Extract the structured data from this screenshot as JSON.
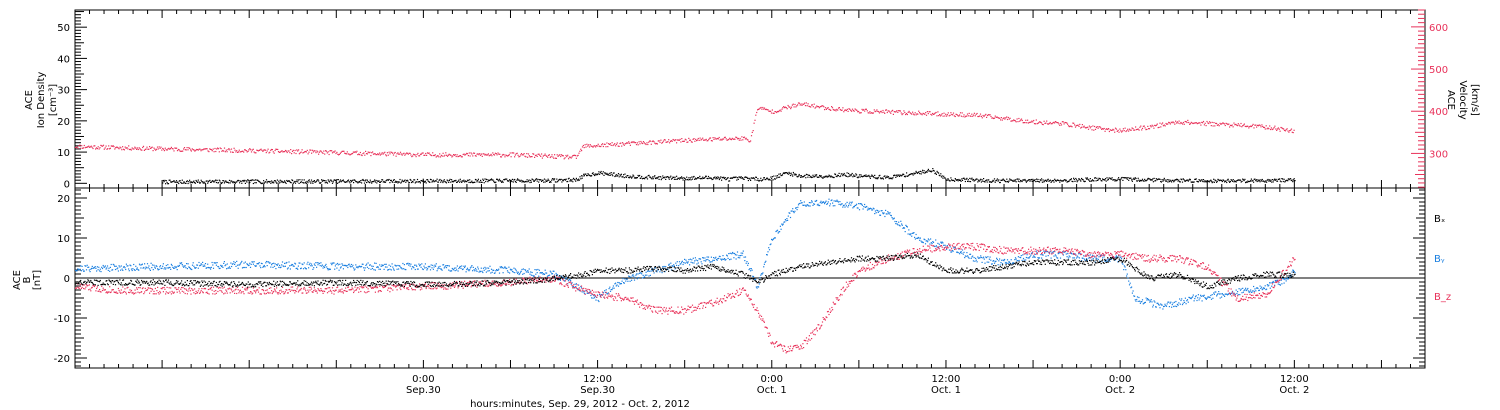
{
  "chart_data": [
    {
      "type": "scatter",
      "panel": "top",
      "ylabel_left": [
        "ACE",
        "Ion Density",
        "[cm⁻³]"
      ],
      "ylabel_right": [
        "ACE",
        "Velocity",
        "[km/s]"
      ],
      "ylim_left": [
        -1.5,
        55.5
      ],
      "ylim_right": [
        218,
        640
      ],
      "yticks_left": [
        0,
        10,
        20,
        30,
        40,
        50
      ],
      "yticks_right": [
        300,
        400,
        500,
        600
      ],
      "colors": {
        "density": "#000000",
        "velocity": "#e8325a",
        "right_axis": "#e8325a"
      },
      "series": [
        {
          "name": "Ion Density",
          "axis": "left",
          "color": "#000000",
          "x": [
            "2012-09-29 06:00",
            "2012-09-29 12:00",
            "2012-09-29 18:00",
            "2012-09-30 00:00",
            "2012-09-30 06:00",
            "2012-09-30 09:00",
            "2012-09-30 10:30",
            "2012-09-30 11:00",
            "2012-09-30 12:00",
            "2012-09-30 14:00",
            "2012-09-30 16:00",
            "2012-09-30 18:00",
            "2012-09-30 20:00",
            "2012-09-30 21:00",
            "2012-09-30 22:00",
            "2012-09-30 23:00",
            "2012-10-01 00:00",
            "2012-10-01 01:00",
            "2012-10-01 02:00",
            "2012-10-01 04:00",
            "2012-10-01 05:00",
            "2012-10-01 06:00",
            "2012-10-01 08:00",
            "2012-10-01 10:00",
            "2012-10-01 11:00",
            "2012-10-01 12:00",
            "2012-10-01 14:00",
            "2012-10-01 16:00",
            "2012-10-01 18:00",
            "2012-10-01 20:00",
            "2012-10-01 22:00",
            "2012-10-02 00:00",
            "2012-10-02 02:00",
            "2012-10-02 04:00",
            "2012-10-02 06:00",
            "2012-10-02 08:00",
            "2012-10-02 10:00",
            "2012-10-02 12:00"
          ],
          "values": [
            0.6,
            0.7,
            0.8,
            0.9,
            1.0,
            1.1,
            1.3,
            2.5,
            3.5,
            2.5,
            2.0,
            1.8,
            2.0,
            1.5,
            1.8,
            1.5,
            1.8,
            3.5,
            2.5,
            2.5,
            3.0,
            2.5,
            2.0,
            3.5,
            4.5,
            1.5,
            1.2,
            1.0,
            1.0,
            1.1,
            1.4,
            1.5,
            1.3,
            1.1,
            1.0,
            1.0,
            1.1,
            1.2
          ]
        },
        {
          "name": "Velocity",
          "axis": "right",
          "color": "#e8325a",
          "x": [
            "2012-09-29 00:00",
            "2012-09-29 06:00",
            "2012-09-29 12:00",
            "2012-09-29 18:00",
            "2012-09-30 00:00",
            "2012-09-30 06:00",
            "2012-09-30 10:30",
            "2012-09-30 11:00",
            "2012-09-30 12:00",
            "2012-09-30 15:00",
            "2012-09-30 18:00",
            "2012-09-30 20:00",
            "2012-09-30 22:00",
            "2012-09-30 22:30",
            "2012-09-30 23:00",
            "2012-10-01 00:00",
            "2012-10-01 01:00",
            "2012-10-01 02:00",
            "2012-10-01 04:00",
            "2012-10-01 06:00",
            "2012-10-01 09:00",
            "2012-10-01 12:00",
            "2012-10-01 14:00",
            "2012-10-01 16:00",
            "2012-10-01 18:00",
            "2012-10-01 20:00",
            "2012-10-01 22:00",
            "2012-10-02 00:00",
            "2012-10-02 02:00",
            "2012-10-02 04:00",
            "2012-10-02 06:00",
            "2012-10-02 08:00",
            "2012-10-02 10:00",
            "2012-10-02 12:00"
          ],
          "values": [
            318,
            312,
            308,
            303,
            298,
            298,
            292,
            318,
            320,
            326,
            332,
            335,
            337,
            332,
            410,
            400,
            410,
            418,
            408,
            402,
            398,
            394,
            392,
            384,
            376,
            372,
            362,
            355,
            364,
            376,
            372,
            368,
            364,
            354
          ]
        }
      ]
    },
    {
      "type": "scatter",
      "panel": "bottom",
      "ylabel_left": [
        "ACE",
        "B",
        "[nT]"
      ],
      "ylim": [
        -22.5,
        22.5
      ],
      "yticks": [
        -20,
        -10,
        0,
        10,
        20
      ],
      "zero_line": true,
      "legend": "right",
      "legend_labels": [
        "Bₓ",
        "Bᵧ",
        "B_z"
      ],
      "colors": {
        "Bx": "#000000",
        "By": "#1a7fe0",
        "Bz": "#e8325a"
      },
      "series": [
        {
          "name": "Bₓ",
          "color": "#000000",
          "x": [
            "2012-09-29 00:00",
            "2012-09-29 06:00",
            "2012-09-29 12:00",
            "2012-09-29 18:00",
            "2012-09-30 00:00",
            "2012-09-30 06:00",
            "2012-09-30 09:00",
            "2012-09-30 11:00",
            "2012-09-30 12:00",
            "2012-09-30 14:00",
            "2012-09-30 16:00",
            "2012-09-30 18:00",
            "2012-09-30 20:00",
            "2012-09-30 22:00",
            "2012-09-30 23:00",
            "2012-10-01 00:00",
            "2012-10-01 02:00",
            "2012-10-01 04:00",
            "2012-10-01 06:00",
            "2012-10-01 08:00",
            "2012-10-01 10:00",
            "2012-10-01 12:00",
            "2012-10-01 14:00",
            "2012-10-01 16:00",
            "2012-10-01 18:00",
            "2012-10-01 20:00",
            "2012-10-01 22:00",
            "2012-10-02 00:00",
            "2012-10-02 02:00",
            "2012-10-02 04:00",
            "2012-10-02 06:00",
            "2012-10-02 08:00",
            "2012-10-02 10:00",
            "2012-10-02 12:00"
          ],
          "values": [
            -1,
            -1,
            -1.5,
            -1,
            -1.5,
            -1,
            0,
            1,
            2,
            2,
            2.5,
            2,
            3,
            1,
            -1,
            1,
            3,
            4,
            5,
            5,
            6,
            2,
            2,
            3,
            4,
            4,
            4,
            5,
            0,
            1,
            -2,
            0,
            1,
            1
          ]
        },
        {
          "name": "Bᵧ",
          "color": "#1a7fe0",
          "x": [
            "2012-09-29 00:00",
            "2012-09-29 06:00",
            "2012-09-29 12:00",
            "2012-09-29 18:00",
            "2012-09-30 00:00",
            "2012-09-30 06:00",
            "2012-09-30 09:00",
            "2012-09-30 10:30",
            "2012-09-30 12:00",
            "2012-09-30 14:00",
            "2012-09-30 16:00",
            "2012-09-30 18:00",
            "2012-09-30 20:00",
            "2012-09-30 22:00",
            "2012-09-30 23:00",
            "2012-10-01 00:00",
            "2012-10-01 01:00",
            "2012-10-01 02:00",
            "2012-10-01 04:00",
            "2012-10-01 06:00",
            "2012-10-01 08:00",
            "2012-10-01 10:00",
            "2012-10-01 12:00",
            "2012-10-01 14:00",
            "2012-10-01 16:00",
            "2012-10-01 18:00",
            "2012-10-01 20:00",
            "2012-10-01 22:00",
            "2012-10-02 00:00",
            "2012-10-02 01:00",
            "2012-10-02 03:00",
            "2012-10-02 05:00",
            "2012-10-02 07:00",
            "2012-10-02 09:00",
            "2012-10-02 11:00",
            "2012-10-02 12:00"
          ],
          "values": [
            2.5,
            3,
            3.5,
            3,
            3,
            2,
            1,
            -2,
            -5,
            0,
            2,
            4,
            5,
            6,
            -2,
            10,
            15,
            19,
            19,
            18,
            16,
            10,
            8,
            5,
            4,
            6,
            6,
            5,
            5,
            -5,
            -7,
            -5,
            -4,
            -3,
            -1,
            2
          ]
        },
        {
          "name": "B_z",
          "color": "#e8325a",
          "x": [
            "2012-09-29 00:00",
            "2012-09-29 03:00",
            "2012-09-29 06:00",
            "2012-09-29 12:00",
            "2012-09-29 18:00",
            "2012-09-30 00:00",
            "2012-09-30 06:00",
            "2012-09-30 09:00",
            "2012-09-30 11:00",
            "2012-09-30 12:00",
            "2012-09-30 14:00",
            "2012-09-30 16:00",
            "2012-09-30 18:00",
            "2012-09-30 20:00",
            "2012-09-30 22:00",
            "2012-09-30 23:00",
            "2012-10-01 00:00",
            "2012-10-01 01:00",
            "2012-10-01 02:00",
            "2012-10-01 03:00",
            "2012-10-01 04:00",
            "2012-10-01 05:00",
            "2012-10-01 06:00",
            "2012-10-01 08:00",
            "2012-10-01 10:00",
            "2012-10-01 12:00",
            "2012-10-01 14:00",
            "2012-10-01 16:00",
            "2012-10-01 18:00",
            "2012-10-01 20:00",
            "2012-10-01 22:00",
            "2012-10-02 00:00",
            "2012-10-02 02:00",
            "2012-10-02 04:00",
            "2012-10-02 06:00",
            "2012-10-02 08:00",
            "2012-10-02 10:00",
            "2012-10-02 12:00"
          ],
          "values": [
            -2,
            -3,
            -3,
            -3,
            -3,
            -2,
            -1,
            0,
            -3,
            -4,
            -5,
            -8,
            -8,
            -6,
            -3,
            -8,
            -16,
            -18,
            -17,
            -13,
            -8,
            -2,
            2,
            5,
            7,
            8,
            8,
            7,
            7,
            7,
            6,
            6,
            5,
            5,
            3,
            -5,
            -4,
            5
          ]
        }
      ]
    }
  ],
  "x_axis": {
    "xlim": [
      "2012-09-29 00:00",
      "2012-10-02 21:00"
    ],
    "ticks": [
      {
        "x": "2012-09-30 00:00",
        "time": "0:00",
        "date": "Sep.30"
      },
      {
        "x": "2012-09-30 12:00",
        "time": "12:00",
        "date": "Sep.30"
      },
      {
        "x": "2012-10-01 00:00",
        "time": "0:00",
        "date": "Oct. 1"
      },
      {
        "x": "2012-10-01 12:00",
        "time": "12:00",
        "date": "Oct. 1"
      },
      {
        "x": "2012-10-02 00:00",
        "time": "0:00",
        "date": "Oct. 2"
      },
      {
        "x": "2012-10-02 12:00",
        "time": "12:00",
        "date": "Oct. 2"
      }
    ],
    "xlabel": "hours:minutes, Sep. 29, 2012 - Oct.  2, 2012"
  }
}
